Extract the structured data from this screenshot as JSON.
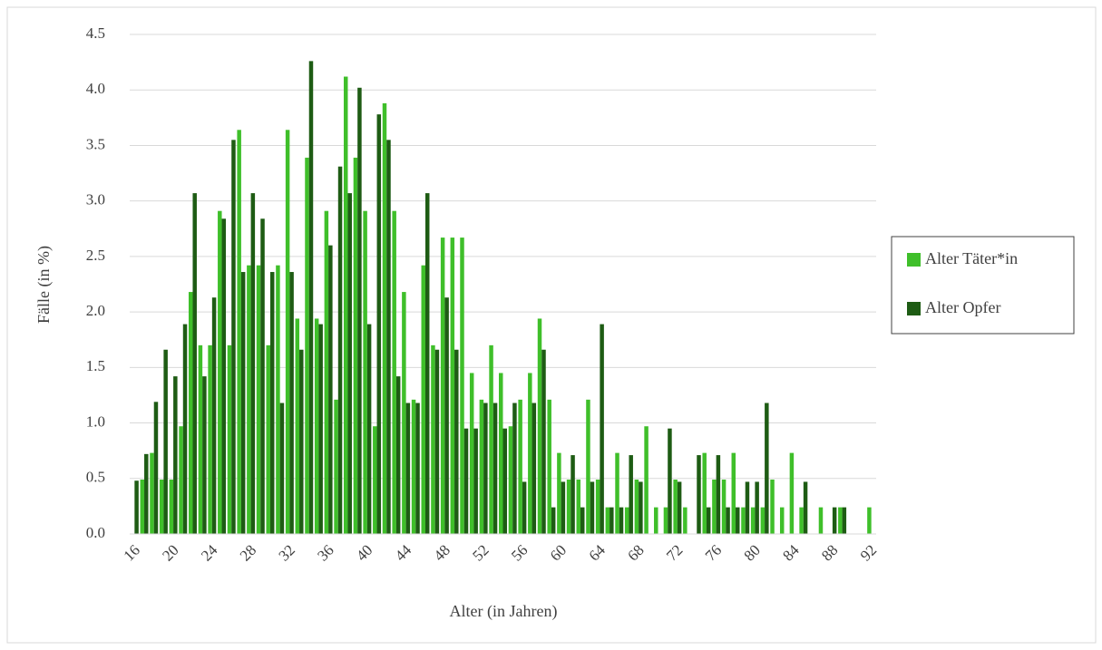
{
  "chart_data": {
    "type": "bar",
    "x_label": "Alter (in Jahren)",
    "y_label": "Fälle (in %)",
    "categories": [
      "16",
      null,
      null,
      null,
      "20",
      null,
      null,
      null,
      "24",
      null,
      null,
      null,
      "28",
      null,
      null,
      null,
      "32",
      null,
      null,
      null,
      "36",
      null,
      null,
      null,
      "40",
      null,
      null,
      null,
      "44",
      null,
      null,
      null,
      "48",
      null,
      null,
      null,
      "52",
      null,
      null,
      null,
      "56",
      null,
      null,
      null,
      "60",
      null,
      null,
      null,
      "64",
      null,
      null,
      null,
      "68",
      null,
      null,
      null,
      "72",
      null,
      null,
      null,
      "76",
      null,
      null,
      null,
      "80",
      null,
      null,
      null,
      "84",
      null,
      null,
      null,
      "88",
      null,
      null,
      null,
      "92"
    ],
    "series": [
      {
        "name": "Alter Täter*in",
        "color": "#3fbf2a",
        "values": [
          0,
          0.49,
          0.73,
          0.49,
          0.49,
          0.97,
          2.18,
          1.7,
          1.7,
          2.91,
          1.7,
          3.64,
          2.42,
          2.42,
          1.7,
          2.42,
          3.64,
          1.94,
          3.39,
          1.94,
          2.91,
          1.21,
          4.12,
          3.39,
          2.91,
          0.97,
          3.88,
          2.91,
          2.18,
          1.21,
          2.42,
          1.7,
          2.67,
          2.67,
          2.67,
          1.45,
          1.21,
          1.7,
          1.45,
          0.97,
          1.21,
          1.45,
          1.94,
          1.21,
          0.73,
          0.49,
          0.49,
          1.21,
          0.49,
          0.24,
          0.73,
          0.24,
          0.49,
          0.97,
          0.24,
          0.24,
          0.49,
          0.24,
          0,
          0.73,
          0.49,
          0.49,
          0.73,
          0.24,
          0.24,
          0.24,
          0.49,
          0.24,
          0.73,
          0.24,
          0,
          0.24,
          0,
          0.24,
          0,
          0,
          0.24
        ]
      },
      {
        "name": "Alter Opfer",
        "color": "#1e5c14",
        "values": [
          0.48,
          0.72,
          1.19,
          1.66,
          1.42,
          1.89,
          3.07,
          1.42,
          2.13,
          2.84,
          3.55,
          2.36,
          3.07,
          2.84,
          2.36,
          1.18,
          2.36,
          1.66,
          4.26,
          1.89,
          2.6,
          3.31,
          3.07,
          4.02,
          1.89,
          3.78,
          3.55,
          1.42,
          1.18,
          1.18,
          3.07,
          1.66,
          2.13,
          1.66,
          0.95,
          0.95,
          1.18,
          1.18,
          0.95,
          1.18,
          0.47,
          1.18,
          1.66,
          0.24,
          0.47,
          0.71,
          0.24,
          0.47,
          1.89,
          0.24,
          0.24,
          0.71,
          0.47,
          0,
          0,
          0.95,
          0.47,
          0,
          0.71,
          0.24,
          0.71,
          0.24,
          0.24,
          0.47,
          0.47,
          1.18,
          0,
          0,
          0,
          0.47,
          0,
          0,
          0.24,
          0.24,
          0,
          0,
          0
        ]
      }
    ],
    "ylim": [
      0,
      4.5
    ],
    "yticks": [
      {
        "value": 0,
        "label": "0.0"
      },
      0.5,
      {
        "value": 1,
        "label": "1.0"
      },
      1.5,
      {
        "value": 2,
        "label": "2.0"
      },
      2.5,
      {
        "value": 3,
        "label": "3.0"
      },
      3.5,
      {
        "value": 4,
        "label": "4.0"
      },
      4.5
    ],
    "grid": true,
    "legend": "right"
  }
}
